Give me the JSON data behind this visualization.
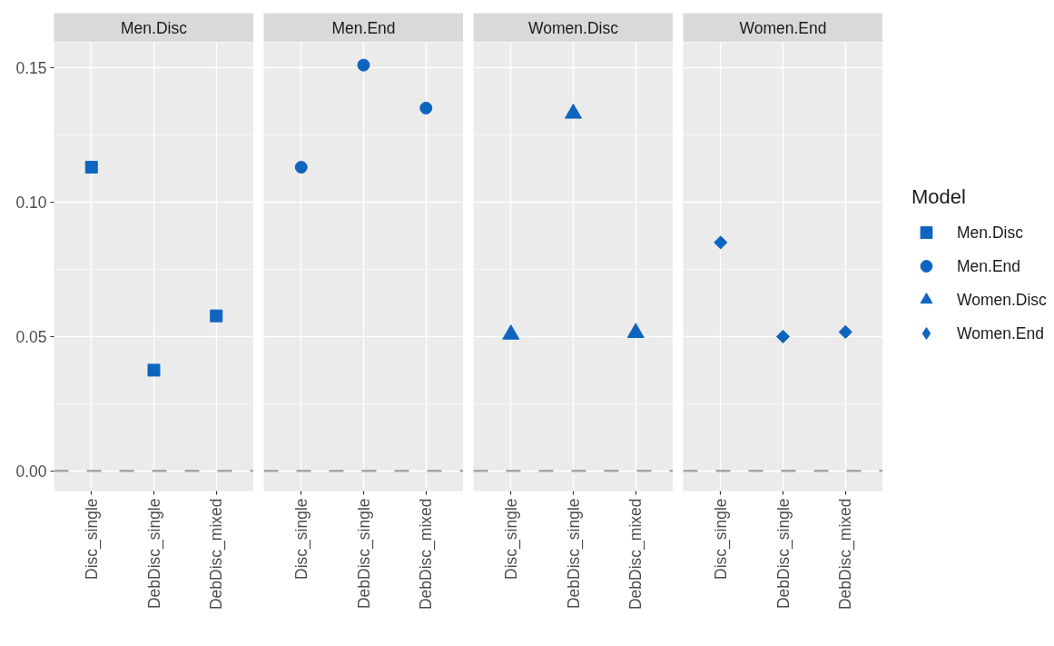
{
  "chart_data": [
    {
      "type": "scatter",
      "title": "Men.Disc",
      "categories": [
        "Disc_single",
        "DebDisc_single",
        "DebDisc_mixed"
      ],
      "series": [
        {
          "name": "Men.Disc",
          "color": "#0d65c0",
          "values": [
            0.113,
            0.0375,
            0.0577
          ]
        }
      ],
      "marker": "square",
      "ylim": [
        -0.0075,
        0.1595
      ],
      "yticks": [
        {
          "value": 0,
          "label": "0.00"
        },
        {
          "value": 0.05,
          "label": "0.05"
        },
        {
          "value": 0.1,
          "label": "0.10"
        },
        {
          "value": 0.15,
          "label": "0.15"
        }
      ],
      "grid": true,
      "ref_lines": [
        {
          "axis": "y",
          "value": 0,
          "color": "#a6a6a6",
          "line_style": "dashed"
        }
      ]
    },
    {
      "type": "scatter",
      "title": "Men.End",
      "categories": [
        "Disc_single",
        "DebDisc_single",
        "DebDisc_mixed"
      ],
      "series": [
        {
          "name": "Men.End",
          "color": "#0d65c0",
          "values": [
            0.113,
            0.151,
            0.135
          ]
        }
      ],
      "marker": "circle",
      "ylim": [
        -0.0075,
        0.1595
      ],
      "yticks": [
        0,
        0.05,
        0.1,
        0.15
      ],
      "tick_labels": "x",
      "grid": true,
      "ref_lines": [
        {
          "axis": "y",
          "value": 0,
          "color": "#a6a6a6",
          "line_style": "dashed"
        }
      ]
    },
    {
      "type": "scatter",
      "title": "Women.Disc",
      "categories": [
        "Disc_single",
        "DebDisc_single",
        "DebDisc_mixed"
      ],
      "series": [
        {
          "name": "Women.Disc",
          "color": "#0d65c0",
          "values": [
            0.0508,
            0.133,
            0.0514
          ]
        }
      ],
      "marker": "triangle",
      "ylim": [
        -0.0075,
        0.1595
      ],
      "yticks": [
        0,
        0.05,
        0.1,
        0.15
      ],
      "tick_labels": "x",
      "grid": true,
      "ref_lines": [
        {
          "axis": "y",
          "value": 0,
          "color": "#a6a6a6",
          "line_style": "dashed"
        }
      ]
    },
    {
      "type": "scatter",
      "title": "Women.End",
      "categories": [
        "Disc_single",
        "DebDisc_single",
        "DebDisc_mixed"
      ],
      "series": [
        {
          "name": "Women.End",
          "color": "#0d65c0",
          "values": [
            0.085,
            0.05,
            0.0517
          ]
        }
      ],
      "marker": "diamond",
      "ylim": [
        -0.0075,
        0.1595
      ],
      "yticks": [
        0,
        0.05,
        0.1,
        0.15
      ],
      "tick_labels": "x",
      "grid": true,
      "ref_lines": [
        {
          "axis": "y",
          "value": 0,
          "color": "#a6a6a6",
          "line_style": "dashed"
        }
      ],
      "legend": "right",
      "legend_title": "Model"
    }
  ]
}
